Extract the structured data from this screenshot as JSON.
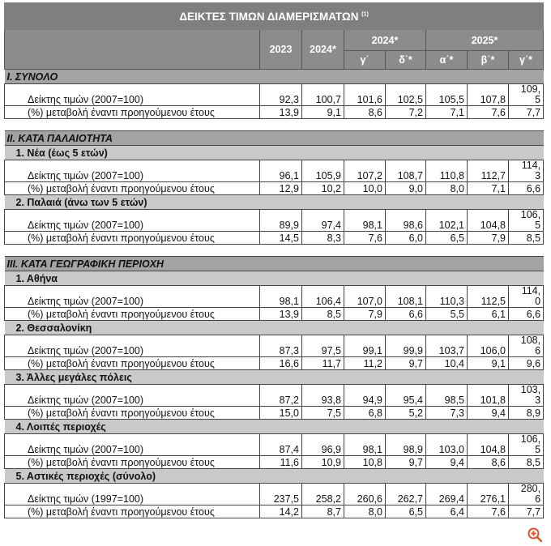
{
  "title": "ΔΕΙΚΤΕΣ ΤΙΜΩΝ ΔΙΑΜΕΡΙΣΜΑΤΩΝ",
  "title_note": "(1)",
  "header": {
    "col_2023": "2023",
    "col_2024": "2024*",
    "group_2024": "2024*",
    "group_2025": "2025*",
    "quarters": [
      "γ΄",
      "δ΄*",
      "α΄*",
      "β΄*",
      "γ΄*"
    ]
  },
  "accent_colors": {
    "title_bg": "#7f7f7f",
    "section_bg": "#a3a3a3",
    "subsection_bg": "#c9c9c9"
  },
  "sections": [
    {
      "title": "I. ΣΥΝΟΛΟ",
      "groups": [
        {
          "subtitle": null,
          "index_label": "Δείκτης τιμών (2007=100)",
          "index": [
            "92,3",
            "100,7",
            "101,6",
            "102,5",
            "105,5",
            "107,8",
            "109,\n5"
          ],
          "pct_label": "(%) μεταβολή έναντι προηγούμενου έτους",
          "pct": [
            "13,9",
            "9,1",
            "8,6",
            "7,2",
            "7,1",
            "7,6",
            "7,7"
          ]
        }
      ]
    },
    {
      "title": "II. ΚΑΤΑ ΠΑΛΑΙΟΤΗΤΑ",
      "groups": [
        {
          "subtitle": "1.  Νέα (έως 5 ετών)",
          "index_label": "Δείκτης τιμών (2007=100)",
          "index": [
            "96,1",
            "105,9",
            "107,2",
            "108,7",
            "110,8",
            "112,7",
            "114,\n3"
          ],
          "pct_label": "(%) μεταβολή έναντι προηγούμενου έτους",
          "pct": [
            "12,9",
            "10,2",
            "10,0",
            "9,0",
            "8,0",
            "7,1",
            "6,6"
          ]
        },
        {
          "subtitle": "2. Παλαιά (άνω των 5 ετών)",
          "index_label": "Δείκτης τιμών (2007=100)",
          "index": [
            "89,9",
            "97,4",
            "98,1",
            "98,6",
            "102,1",
            "104,8",
            "106,\n5"
          ],
          "pct_label": "(%) μεταβολή έναντι προηγούμενου έτους",
          "pct": [
            "14,5",
            "8,3",
            "7,6",
            "6,0",
            "6,5",
            "7,9",
            "8,5"
          ]
        }
      ]
    },
    {
      "title": "III. ΚΑΤΑ ΓΕΩΓΡΑΦΙΚΗ ΠΕΡΙΟΧΗ",
      "groups": [
        {
          "subtitle": "1.  Αθήνα",
          "index_label": "Δείκτης τιμών (2007=100)",
          "index": [
            "98,1",
            "106,4",
            "107,0",
            "108,1",
            "110,3",
            "112,5",
            "114,\n0"
          ],
          "pct_label": "(%) μεταβολή έναντι προηγούμενου έτους",
          "pct": [
            "13,9",
            "8,5",
            "7,9",
            "6,6",
            "5,5",
            "6,1",
            "6,6"
          ]
        },
        {
          "subtitle": "2.  Θεσσαλονίκη",
          "index_label": "Δείκτης τιμών (2007=100)",
          "index": [
            "87,3",
            "97,5",
            "99,1",
            "99,9",
            "103,7",
            "106,0",
            "108,\n6"
          ],
          "pct_label": "(%) μεταβολή έναντι προηγούμενου έτους",
          "pct": [
            "16,6",
            "11,7",
            "11,2",
            "9,7",
            "10,4",
            "9,1",
            "9,6"
          ]
        },
        {
          "subtitle": "3.  Άλλες μεγάλες πόλεις",
          "index_label": "Δείκτης τιμών (2007=100)",
          "index": [
            "87,2",
            "93,8",
            "94,9",
            "95,4",
            "98,5",
            "101,8",
            "103,\n3"
          ],
          "pct_label": "(%) μεταβολή έναντι προηγούμενου έτους",
          "pct": [
            "15,0",
            "7,5",
            "6,8",
            "5,2",
            "7,3",
            "9,4",
            "8,9"
          ]
        },
        {
          "subtitle": "4.  Λοιπές περιοχές",
          "index_label": "Δείκτης τιμών (2007=100)",
          "index": [
            "87,4",
            "96,9",
            "98,1",
            "98,9",
            "103,0",
            "104,8",
            "106,\n5"
          ],
          "pct_label": "(%) μεταβολή έναντι προηγούμενου έτους",
          "pct": [
            "11,6",
            "10,9",
            "10,8",
            "9,7",
            "9,4",
            "8,6",
            "8,5"
          ]
        },
        {
          "subtitle": "5.  Αστικές περιοχές (σύνολο)",
          "index_label": "Δείκτης τιμών (1997=100)",
          "index": [
            "237,5",
            "258,2",
            "260,6",
            "262,7",
            "269,4",
            "276,1",
            "280,\n6"
          ],
          "pct_label": "(%) μεταβολή έναντι προηγούμενου έτους",
          "pct": [
            "14,2",
            "8,7",
            "8,0",
            "6,5",
            "6,4",
            "7,6",
            "7,7"
          ]
        }
      ]
    }
  ],
  "zoom_icon": "zoom-in-icon"
}
